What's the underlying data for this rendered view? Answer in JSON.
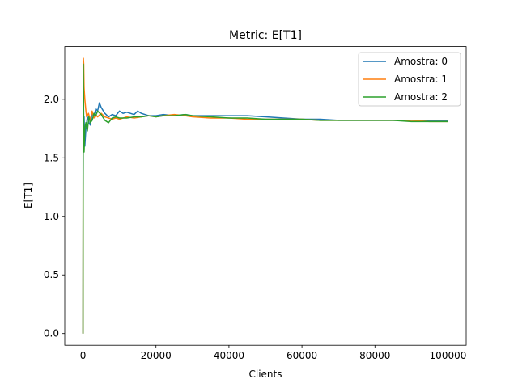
{
  "chart_data": {
    "type": "line",
    "title": "Metric: E[T1]",
    "xlabel": "Clients",
    "ylabel": "E[T1]",
    "xlim": [
      -5000,
      105000
    ],
    "ylim": [
      -0.1,
      2.45
    ],
    "xticks": [
      0,
      20000,
      40000,
      60000,
      80000,
      100000
    ],
    "xtick_labels": [
      "0",
      "20000",
      "40000",
      "60000",
      "80000",
      "100000"
    ],
    "yticks": [
      0.0,
      0.5,
      1.0,
      1.5,
      2.0
    ],
    "ytick_labels": [
      "0.0",
      "0.5",
      "1.0",
      "1.5",
      "2.0"
    ],
    "grid": false,
    "legend_position": "top-right",
    "series": [
      {
        "name": "Amostra: 0",
        "color": "#1f77b4",
        "x": [
          0,
          50,
          100,
          200,
          300,
          500,
          800,
          1200,
          1600,
          2000,
          2500,
          3000,
          3500,
          4000,
          4500,
          5000,
          6000,
          7000,
          8000,
          9000,
          10000,
          11000,
          12000,
          13000,
          14000,
          15000,
          16000,
          18000,
          20000,
          22000,
          25000,
          28000,
          30000,
          35000,
          40000,
          45000,
          50000,
          55000,
          60000,
          65000,
          70000,
          75000,
          80000,
          85000,
          90000,
          95000,
          100000
        ],
        "y": [
          0.0,
          1.2,
          2.3,
          1.7,
          1.85,
          1.6,
          1.75,
          1.85,
          1.8,
          1.78,
          1.88,
          1.85,
          1.92,
          1.9,
          1.97,
          1.93,
          1.88,
          1.85,
          1.87,
          1.86,
          1.9,
          1.88,
          1.89,
          1.88,
          1.87,
          1.9,
          1.88,
          1.86,
          1.86,
          1.87,
          1.86,
          1.87,
          1.86,
          1.86,
          1.86,
          1.86,
          1.85,
          1.84,
          1.83,
          1.83,
          1.82,
          1.82,
          1.82,
          1.82,
          1.82,
          1.82,
          1.82
        ]
      },
      {
        "name": "Amostra: 1",
        "color": "#ff7f0e",
        "x": [
          0,
          50,
          100,
          200,
          300,
          500,
          800,
          1000,
          1500,
          2000,
          2500,
          3000,
          3500,
          4000,
          5000,
          6000,
          7000,
          8000,
          9000,
          10000,
          12000,
          14000,
          16000,
          18000,
          20000,
          22000,
          25000,
          28000,
          30000,
          35000,
          40000,
          45000,
          50000,
          55000,
          60000,
          65000,
          70000,
          75000,
          80000,
          85000,
          90000,
          95000,
          100000
        ],
        "y": [
          0.0,
          1.5,
          2.35,
          2.3,
          2.1,
          2.0,
          1.9,
          1.85,
          1.88,
          1.82,
          1.9,
          1.84,
          1.87,
          1.85,
          1.88,
          1.85,
          1.84,
          1.83,
          1.84,
          1.83,
          1.85,
          1.84,
          1.85,
          1.86,
          1.85,
          1.86,
          1.87,
          1.86,
          1.85,
          1.84,
          1.84,
          1.83,
          1.83,
          1.83,
          1.83,
          1.82,
          1.82,
          1.82,
          1.82,
          1.82,
          1.82,
          1.81,
          1.81
        ]
      },
      {
        "name": "Amostra: 2",
        "color": "#2ca02c",
        "x": [
          0,
          50,
          100,
          200,
          300,
          500,
          800,
          1200,
          1600,
          2000,
          2500,
          3000,
          3500,
          4000,
          5000,
          6000,
          7000,
          8000,
          9000,
          10000,
          12000,
          14000,
          16000,
          18000,
          20000,
          22000,
          25000,
          28000,
          30000,
          35000,
          40000,
          45000,
          50000,
          55000,
          60000,
          65000,
          70000,
          75000,
          80000,
          85000,
          90000,
          95000,
          100000
        ],
        "y": [
          0.0,
          1.8,
          2.3,
          1.7,
          1.55,
          1.75,
          1.8,
          1.73,
          1.85,
          1.8,
          1.82,
          1.88,
          1.86,
          1.9,
          1.87,
          1.82,
          1.8,
          1.84,
          1.85,
          1.84,
          1.84,
          1.85,
          1.85,
          1.86,
          1.85,
          1.86,
          1.86,
          1.87,
          1.86,
          1.85,
          1.84,
          1.84,
          1.83,
          1.83,
          1.83,
          1.82,
          1.82,
          1.82,
          1.82,
          1.82,
          1.81,
          1.81,
          1.81
        ]
      }
    ]
  }
}
